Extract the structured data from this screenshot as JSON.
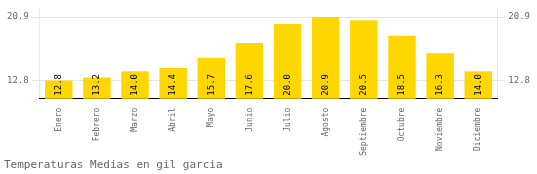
{
  "chart_data": {
    "type": "bar",
    "title": "Temperaturas Medias en gil garcia",
    "categories": [
      "Enero",
      "Febrero",
      "Marzo",
      "Abril",
      "Mayo",
      "Junio",
      "Julio",
      "Agosto",
      "Septiembre",
      "Octubre",
      "Noviembre",
      "Diciembre"
    ],
    "values": [
      12.8,
      13.2,
      14.0,
      14.4,
      15.7,
      17.6,
      20.0,
      20.9,
      20.5,
      18.5,
      16.3,
      14.0
    ],
    "value_labels": [
      "12.8",
      "13.2",
      "14.0",
      "14.4",
      "15.7",
      "17.6",
      "20.0",
      "20.9",
      "20.5",
      "18.5",
      "16.3",
      "14.0"
    ],
    "color": "#FFD700",
    "ylim": [
      10.5,
      22.0
    ],
    "yticks": [
      12.8,
      20.9
    ],
    "y2lim": [
      10.5,
      22.0
    ],
    "y2ticks": [
      12.8,
      20.9
    ],
    "grid": true,
    "data_labels": true
  }
}
